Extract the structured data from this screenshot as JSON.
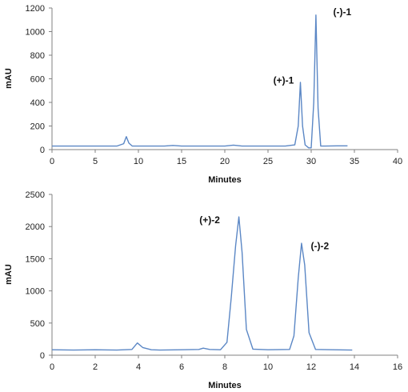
{
  "chart_data": [
    {
      "type": "line",
      "title": "",
      "xlabel": "Minutes",
      "ylabel": "mAU",
      "xlim": [
        0,
        40
      ],
      "ylim": [
        0,
        1200
      ],
      "xticks": [
        0,
        5,
        10,
        15,
        20,
        25,
        30,
        35,
        40
      ],
      "yticks": [
        0,
        200,
        400,
        600,
        800,
        1000,
        1200
      ],
      "grid": false,
      "line_color": "#5b87c5",
      "series": [
        {
          "x": [
            0,
            5,
            7.5,
            8.3,
            8.6,
            8.9,
            9.3,
            10,
            13,
            14,
            15,
            20,
            21,
            22,
            27,
            28.1,
            28.5,
            28.75,
            29.0,
            29.3,
            29.7,
            30.0,
            30.3,
            30.55,
            30.8,
            31.1,
            31.6,
            33,
            34.2
          ],
          "y": [
            30,
            30,
            30,
            50,
            110,
            55,
            30,
            30,
            30,
            35,
            30,
            30,
            38,
            30,
            30,
            40,
            200,
            570,
            200,
            40,
            15,
            15,
            400,
            1140,
            350,
            30,
            30,
            32,
            32
          ]
        }
      ],
      "annotations": [
        {
          "text": "(+)-1",
          "x": 26.8,
          "y": 560
        },
        {
          "text": "(-)-1",
          "x": 33.6,
          "y": 1140
        }
      ]
    },
    {
      "type": "line",
      "title": "",
      "xlabel": "Minutes",
      "ylabel": "mAU",
      "xlim": [
        0,
        16
      ],
      "ylim": [
        0,
        2500
      ],
      "xticks": [
        0,
        2,
        4,
        6,
        8,
        10,
        12,
        14,
        16
      ],
      "yticks": [
        0,
        500,
        1000,
        1500,
        2000,
        2500
      ],
      "grid": false,
      "line_color": "#5b87c5",
      "series": [
        {
          "x": [
            0,
            1,
            2,
            3,
            3.7,
            3.95,
            4.2,
            4.6,
            5,
            6,
            6.8,
            7,
            7.3,
            7.8,
            8.1,
            8.3,
            8.5,
            8.65,
            8.8,
            9.0,
            9.3,
            10,
            11.0,
            11.2,
            11.4,
            11.55,
            11.7,
            11.9,
            12.2,
            13,
            13.9
          ],
          "y": [
            85,
            80,
            85,
            80,
            90,
            190,
            120,
            85,
            80,
            85,
            90,
            110,
            90,
            85,
            200,
            900,
            1700,
            2150,
            1600,
            400,
            95,
            85,
            90,
            300,
            1200,
            1740,
            1400,
            350,
            90,
            85,
            80
          ]
        }
      ],
      "annotations": [
        {
          "text": "(+)-2",
          "x": 7.3,
          "y": 2050
        },
        {
          "text": "(-)-2",
          "x": 12.4,
          "y": 1650
        }
      ]
    }
  ]
}
